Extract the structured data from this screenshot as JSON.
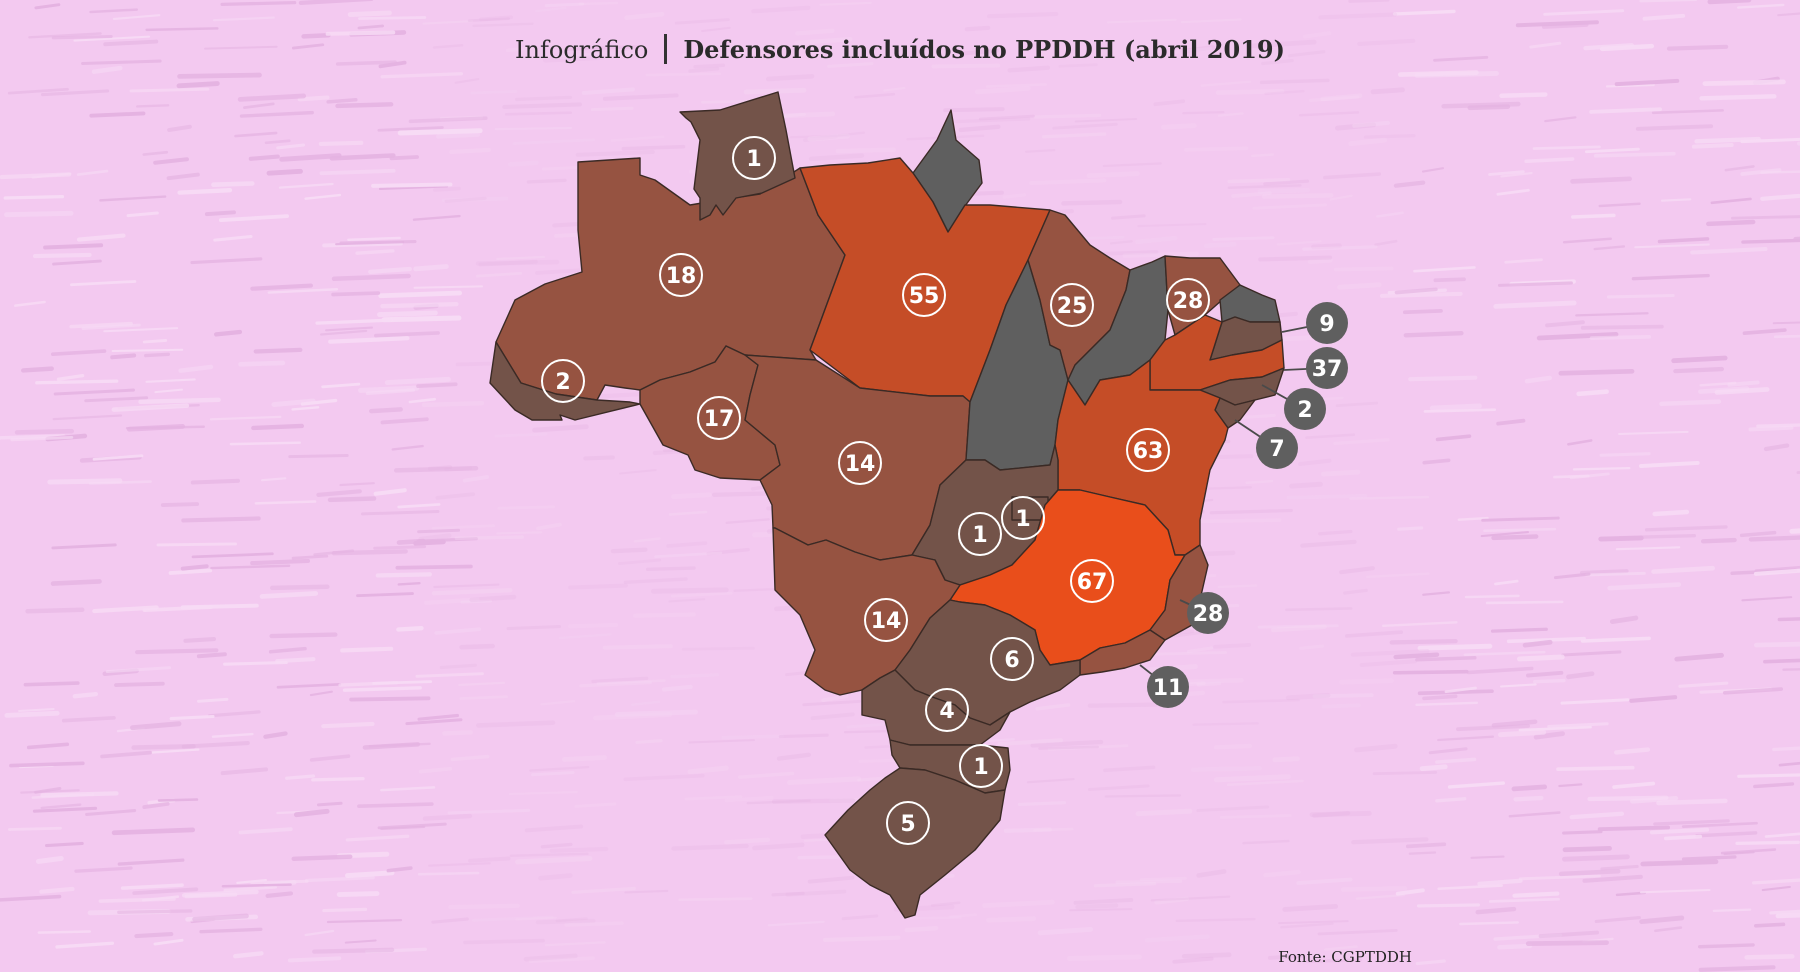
{
  "header": {
    "kicker": "Infográfico",
    "title": "Defensores incluídos no PPDDH (abril 2019)"
  },
  "source": "Fonte: CGPTDDH",
  "colors": {
    "background": "#f3c9f0",
    "nodata": "#5f5f5f",
    "low": "#735349",
    "mid": "#965341",
    "high": "#c54d27",
    "top": "#e94e1b",
    "border": "#3a2a25",
    "bubble_text": "#ffffff"
  },
  "map_data": {
    "type": "choropleth",
    "region": "Brasil",
    "unit": "defensores",
    "regions": [
      {
        "id": "RR",
        "value": "1"
      },
      {
        "id": "AP",
        "value": ""
      },
      {
        "id": "AM",
        "value": "18"
      },
      {
        "id": "PA",
        "value": "55"
      },
      {
        "id": "AC",
        "value": "2"
      },
      {
        "id": "RO",
        "value": "17"
      },
      {
        "id": "MT",
        "value": "14"
      },
      {
        "id": "TO",
        "value": ""
      },
      {
        "id": "MA",
        "value": "25"
      },
      {
        "id": "PI",
        "value": ""
      },
      {
        "id": "CE",
        "value": "28"
      },
      {
        "id": "RN",
        "value": ""
      },
      {
        "id": "PB",
        "value": "9"
      },
      {
        "id": "PE",
        "value": "37"
      },
      {
        "id": "AL",
        "value": "2"
      },
      {
        "id": "SE",
        "value": "7"
      },
      {
        "id": "BA",
        "value": "63"
      },
      {
        "id": "GO",
        "value": "1"
      },
      {
        "id": "DF",
        "value": "1"
      },
      {
        "id": "MG",
        "value": "67"
      },
      {
        "id": "ES",
        "value": "28"
      },
      {
        "id": "RJ",
        "value": "11"
      },
      {
        "id": "MS",
        "value": "14"
      },
      {
        "id": "SP",
        "value": "6"
      },
      {
        "id": "PR",
        "value": "4"
      },
      {
        "id": "SC",
        "value": "1"
      },
      {
        "id": "RS",
        "value": "5"
      }
    ]
  }
}
